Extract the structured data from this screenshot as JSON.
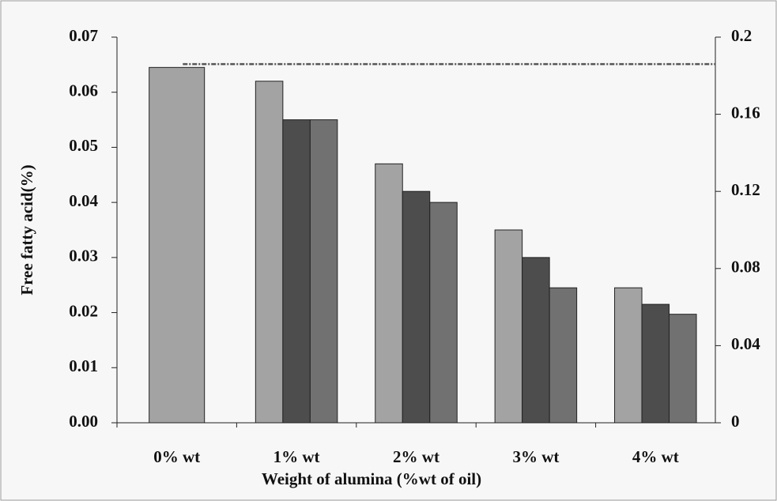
{
  "chart_data": {
    "type": "bar",
    "x_label": "Weight of alumina (%wt of oil)",
    "y_label": "Free fatty acid(%)",
    "categories": [
      "0% wt",
      "1% wt",
      "2% wt",
      "3% wt",
      "4% wt"
    ],
    "series": [
      {
        "color": "#a3a3a3",
        "values": [
          0.0645,
          0.062,
          0.047,
          0.035,
          0.0245
        ]
      },
      {
        "color": "#4d4d4d",
        "values": [
          null,
          0.055,
          0.042,
          0.03,
          0.0215
        ]
      },
      {
        "color": "#717171",
        "values": [
          null,
          0.055,
          0.04,
          0.0245,
          0.0197
        ]
      }
    ],
    "ylim": [
      0,
      0.07
    ],
    "yticks": [
      {
        "value": 0,
        "label": "0.00"
      },
      0.01,
      0.02,
      0.03,
      0.04,
      0.05,
      0.06,
      0.07
    ],
    "y2lim": [
      0,
      0.2
    ],
    "y2ticks": [
      0,
      0.04,
      0.08,
      0.12,
      0.16,
      0.2
    ],
    "hline": {
      "value": 0.186,
      "axis": "y2",
      "color": "#555555"
    }
  }
}
